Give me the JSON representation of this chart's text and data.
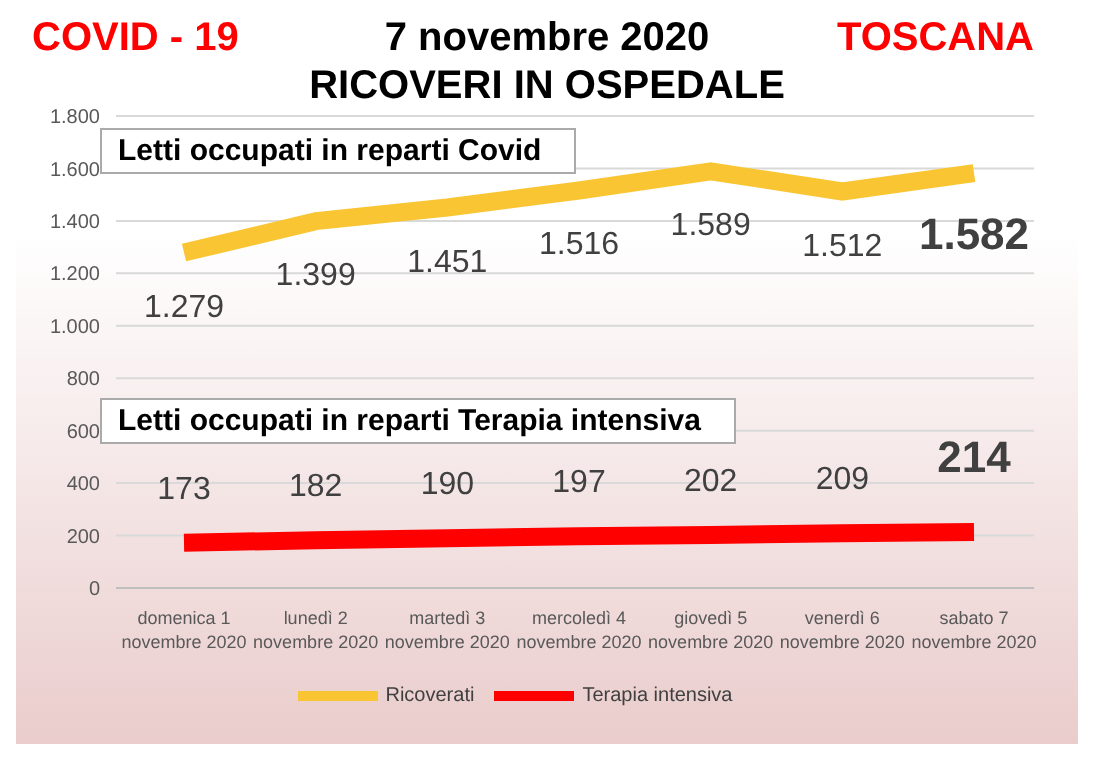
{
  "chart_data": {
    "type": "line",
    "title": "7 novembre 2020",
    "subtitle": "RICOVERI IN OSPEDALE",
    "annotations": [
      "COVID - 19",
      "TOSCANA",
      "Letti occupati in reparti Covid",
      "Letti occupati in reparti Terapia intensiva"
    ],
    "categories": [
      "domenica 1\nnovembre 2020",
      "lunedì 2\nnovembre 2020",
      "martedì 3\nnovembre 2020",
      "mercoledì 4\nnovembre 2020",
      "giovedì 5\nnovembre 2020",
      "venerdì 6\nnovembre 2020",
      "sabato 7\nnovembre 2020"
    ],
    "series": [
      {
        "name": "Ricoverati",
        "color": "#f9c533",
        "values": [
          1279,
          1399,
          1451,
          1516,
          1589,
          1512,
          1582
        ],
        "value_labels": [
          "1.279",
          "1.399",
          "1.451",
          "1.516",
          "1.589",
          "1.512",
          "1.582"
        ]
      },
      {
        "name": "Terapia intensiva",
        "color": "#ff0000",
        "values": [
          173,
          182,
          190,
          197,
          202,
          209,
          214
        ],
        "value_labels": [
          "173",
          "182",
          "190",
          "197",
          "202",
          "209",
          "214"
        ]
      }
    ],
    "ylim": [
      0,
      1800
    ],
    "yticks": [
      {
        "value": 0,
        "label": "0"
      },
      {
        "value": 200,
        "label": "200"
      },
      {
        "value": 400,
        "label": "400"
      },
      {
        "value": 600,
        "label": "600"
      },
      {
        "value": 800,
        "label": "800"
      },
      {
        "value": 1000,
        "label": "1.000"
      },
      {
        "value": 1200,
        "label": "1.200"
      },
      {
        "value": 1400,
        "label": "1.400"
      },
      {
        "value": 1600,
        "label": "1.600"
      },
      {
        "value": 1800,
        "label": "1.800"
      }
    ],
    "grid": "y",
    "legend": "bottom",
    "marker": "none",
    "line_style": "solid"
  }
}
